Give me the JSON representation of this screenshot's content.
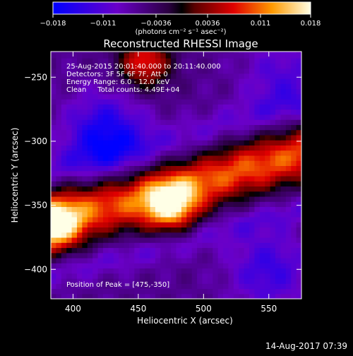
{
  "chart_data": {
    "type": "heatmap",
    "title": "Reconstructed RHESSI Image",
    "xlabel": "Heliocentric X (arcsec)",
    "ylabel": "Heliocentric Y (arcsec)",
    "xlim": [
      383,
      575
    ],
    "ylim": [
      -423,
      -230
    ],
    "x_ticks": [
      400,
      450,
      500,
      550
    ],
    "x_tick_labels": [
      "400",
      "450",
      "500",
      "550"
    ],
    "y_ticks": [
      -400,
      -350,
      -300,
      -250
    ],
    "y_tick_labels": [
      "−400",
      "−350",
      "−300",
      "−250"
    ],
    "colorbar": {
      "range": [
        -0.018,
        0.018
      ],
      "ticks": [
        -0.018,
        -0.011,
        -0.0036,
        0.0036,
        0.011,
        0.018
      ],
      "tick_labels": [
        "−0.018",
        "−0.011",
        "−0.0036",
        "0.0036",
        "0.011",
        "0.018"
      ],
      "unit_label": "(photons cm⁻² s⁻¹ asec⁻²)"
    },
    "annotations": [
      "25-Aug-2015 20:01:40.000 to 20:11:40.000",
      "Detectors: 3F 5F 6F 7F, Att 0",
      "Energy Range: 6.0 - 12.0 keV",
      "Clean     Total counts: 4.49E+04"
    ],
    "peak_text": "Position of Peak = [475,-350]",
    "peak_position": [
      475,
      -350
    ],
    "features": [
      {
        "kind": "bright-band",
        "path": [
          [
            383,
            -362
          ],
          [
            420,
            -352
          ],
          [
            475,
            -340
          ],
          [
            530,
            -322
          ],
          [
            575,
            -310
          ]
        ],
        "width": 28
      },
      {
        "kind": "peak",
        "x": 475,
        "y": -350,
        "value": 0.018
      },
      {
        "kind": "peak",
        "x": 386,
        "y": -365,
        "value": 0.017
      },
      {
        "kind": "peak",
        "x": 455,
        "y": -238,
        "value": 0.016
      },
      {
        "kind": "dark-region",
        "x": 425,
        "y": -295,
        "value": -0.012
      },
      {
        "kind": "dark-region",
        "x": 550,
        "y": -400,
        "value": -0.008
      },
      {
        "kind": "dark-region",
        "x": 560,
        "y": -250,
        "value": -0.006
      }
    ]
  },
  "footer": {
    "timestamp": "14-Aug-2017 07:39"
  }
}
